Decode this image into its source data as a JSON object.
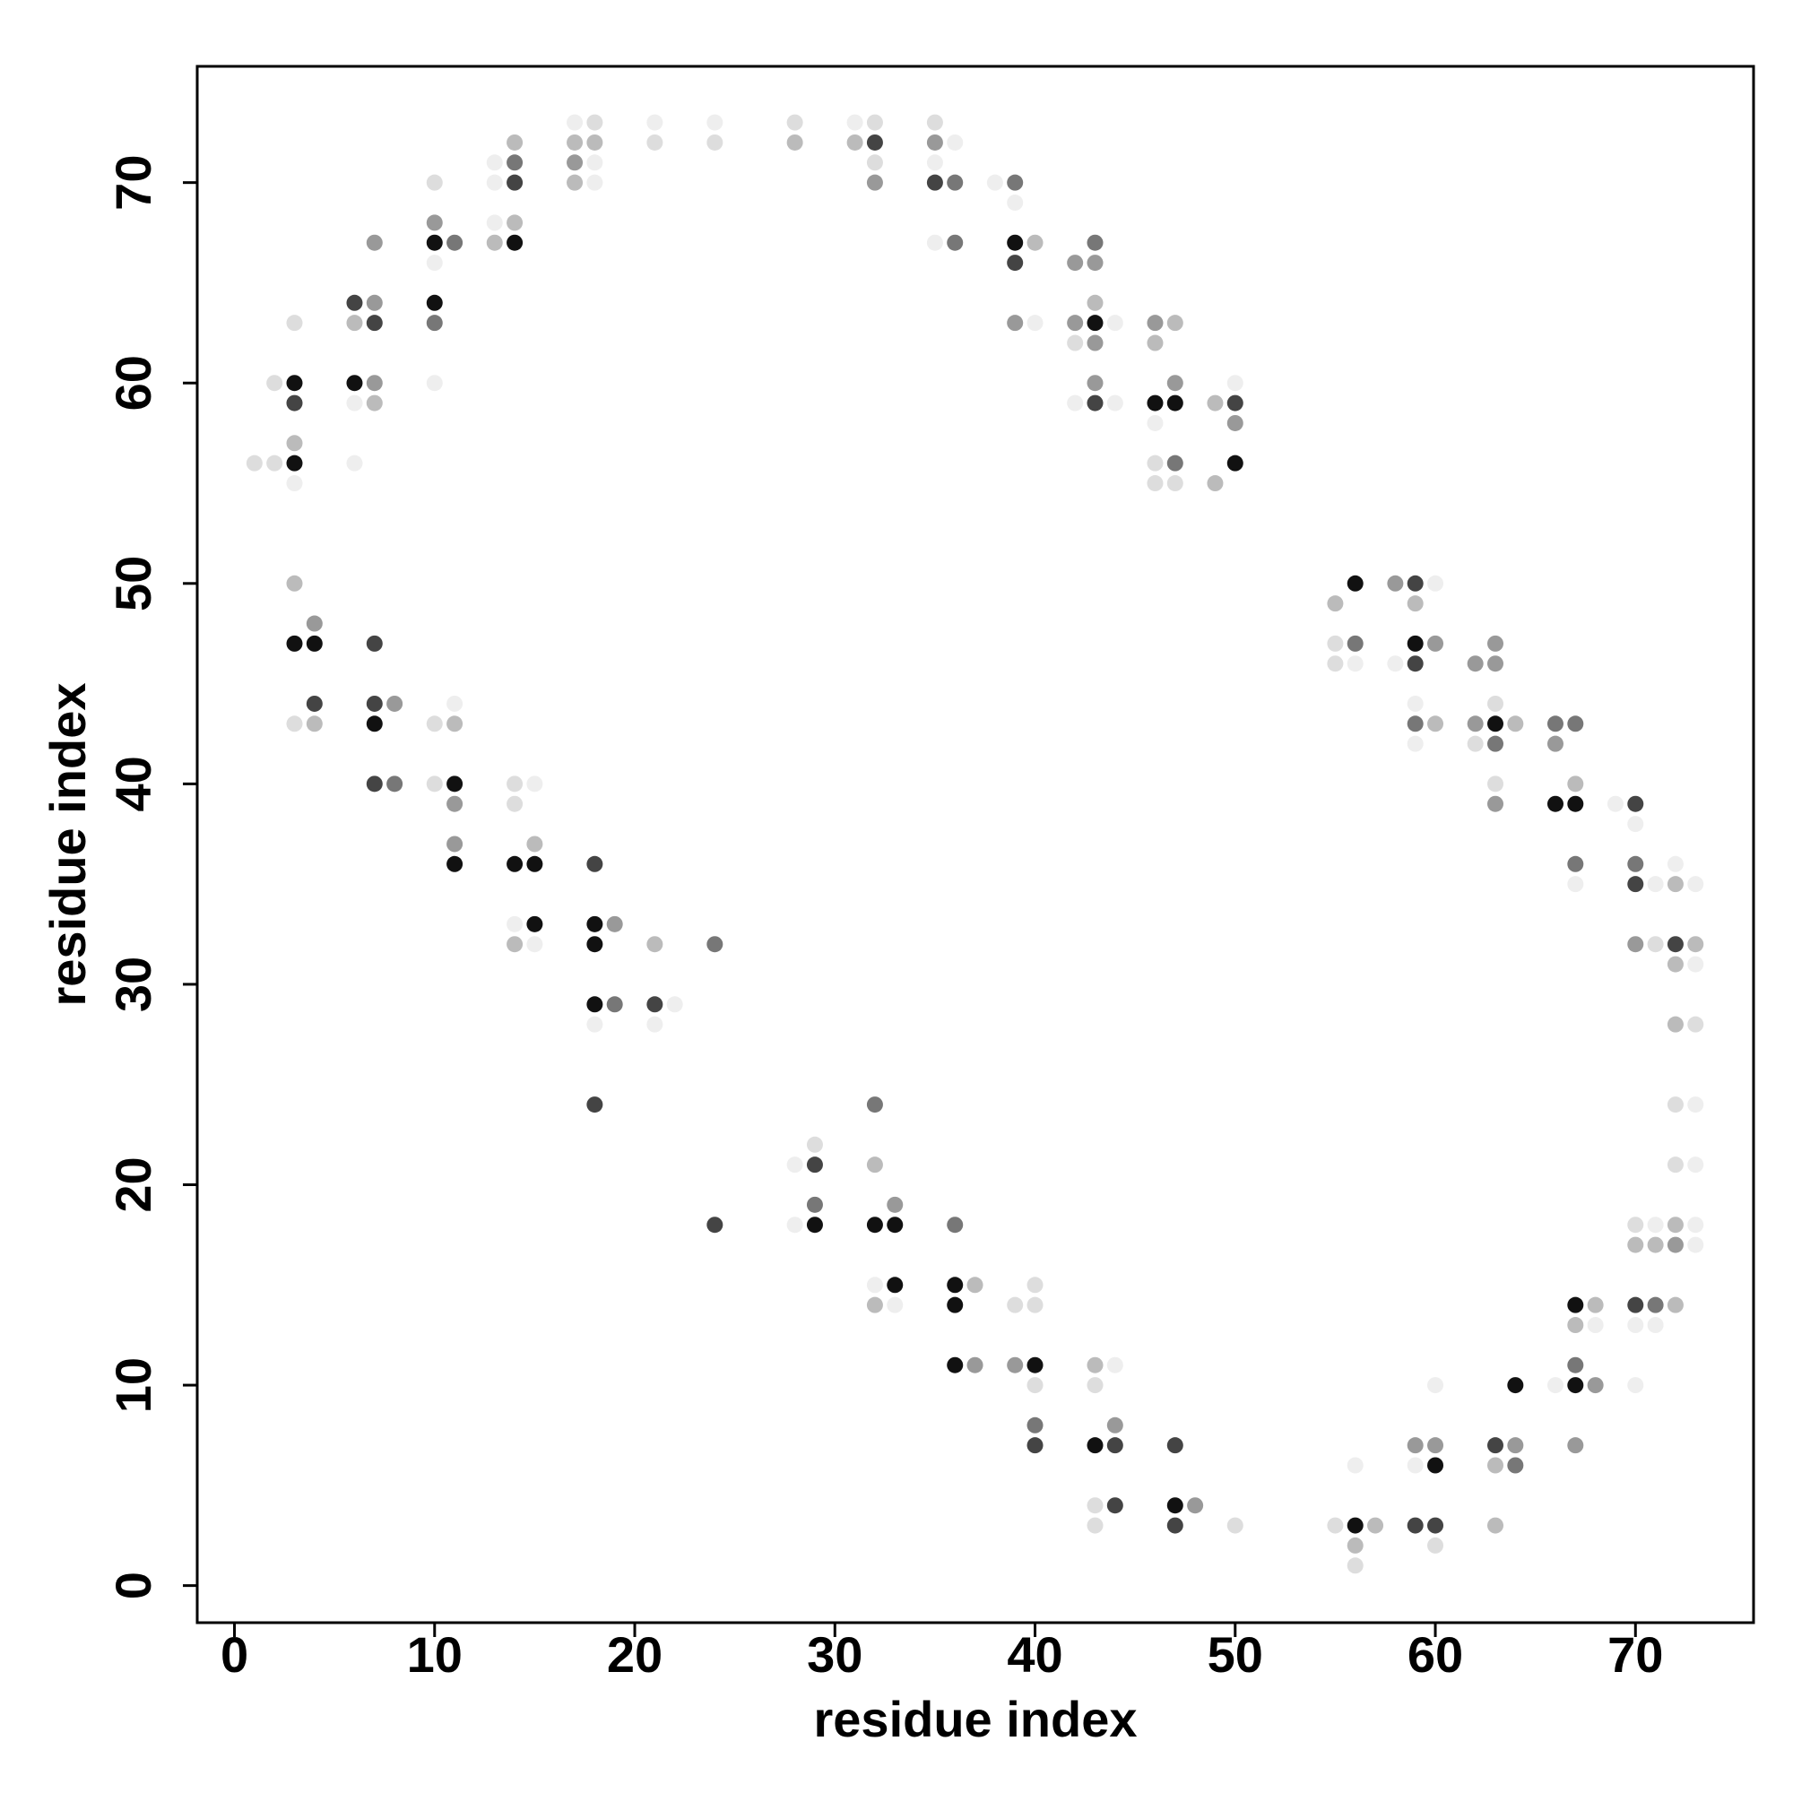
{
  "chart_data": {
    "type": "scatter",
    "xlabel": "residue index",
    "ylabel": "residue index",
    "xlim": [
      -1.86,
      75.9
    ],
    "ylim": [
      -1.85,
      75.8
    ],
    "xticks": [
      0,
      10,
      20,
      30,
      40,
      50,
      60,
      70
    ],
    "yticks": [
      0,
      10,
      20,
      30,
      40,
      50,
      60,
      70
    ],
    "x": [
      1,
      2,
      2,
      3,
      3,
      3,
      3,
      3,
      3,
      3,
      3,
      3,
      4,
      4,
      4,
      4,
      6,
      6,
      6,
      6,
      6,
      7,
      7,
      7,
      7,
      7,
      7,
      7,
      7,
      7,
      8,
      8,
      10,
      10,
      10,
      10,
      10,
      10,
      10,
      10,
      10,
      11,
      11,
      11,
      11,
      11,
      11,
      11,
      13,
      13,
      13,
      13,
      14,
      14,
      14,
      14,
      14,
      14,
      14,
      14,
      14,
      14,
      15,
      15,
      15,
      15,
      15,
      17,
      17,
      17,
      17,
      18,
      18,
      18,
      18,
      18,
      18,
      18,
      18,
      18,
      18,
      19,
      19,
      21,
      21,
      21,
      21,
      21,
      22,
      24,
      24,
      24,
      24,
      28,
      28,
      28,
      28,
      29,
      29,
      29,
      29,
      31,
      31,
      32,
      32,
      32,
      32,
      32,
      32,
      32,
      32,
      32,
      33,
      33,
      33,
      33,
      35,
      35,
      35,
      35,
      35,
      36,
      36,
      36,
      36,
      36,
      36,
      36,
      37,
      37,
      38,
      39,
      39,
      39,
      39,
      39,
      39,
      39,
      40,
      40,
      40,
      40,
      40,
      40,
      40,
      40,
      42,
      42,
      42,
      42,
      43,
      43,
      43,
      43,
      43,
      43,
      43,
      43,
      43,
      43,
      43,
      43,
      44,
      44,
      44,
      44,
      44,
      44,
      46,
      46,
      46,
      46,
      46,
      46,
      47,
      47,
      47,
      47,
      47,
      47,
      47,
      47,
      48,
      49,
      49,
      50,
      50,
      50,
      50,
      50,
      55,
      55,
      55,
      55,
      56,
      56,
      56,
      56,
      56,
      56,
      56,
      57,
      58,
      58,
      59,
      59,
      59,
      59,
      59,
      59,
      59,
      59,
      59,
      59,
      60,
      60,
      60,
      60,
      60,
      60,
      60,
      60,
      62,
      62,
      62,
      63,
      63,
      63,
      63,
      63,
      63,
      63,
      63,
      63,
      63,
      64,
      64,
      64,
      64,
      66,
      66,
      66,
      66,
      67,
      67,
      67,
      67,
      67,
      67,
      67,
      67,
      67,
      67,
      68,
      68,
      68,
      69,
      70,
      70,
      70,
      70,
      70,
      70,
      70,
      70,
      70,
      70,
      71,
      71,
      71,
      71,
      71,
      71,
      72,
      72,
      72,
      72,
      72,
      72,
      72,
      72,
      72,
      72,
      73,
      73,
      73,
      73,
      73,
      73,
      73,
      73
    ],
    "values": [
      56,
      60,
      56,
      63,
      60,
      59,
      57,
      56,
      55,
      50,
      47,
      43,
      48,
      47,
      44,
      43,
      64,
      63,
      60,
      59,
      56,
      67,
      64,
      63,
      60,
      59,
      47,
      44,
      43,
      40,
      44,
      40,
      70,
      68,
      67,
      66,
      64,
      63,
      60,
      43,
      40,
      67,
      44,
      43,
      40,
      39,
      37,
      36,
      71,
      70,
      68,
      67,
      72,
      71,
      70,
      68,
      67,
      40,
      39,
      36,
      33,
      32,
      40,
      37,
      36,
      33,
      32,
      73,
      72,
      71,
      70,
      73,
      72,
      71,
      70,
      36,
      33,
      32,
      29,
      28,
      24,
      33,
      29,
      73,
      72,
      32,
      29,
      28,
      29,
      73,
      72,
      32,
      18,
      73,
      72,
      21,
      18,
      22,
      21,
      19,
      18,
      73,
      72,
      73,
      72,
      71,
      70,
      24,
      21,
      18,
      15,
      14,
      19,
      18,
      15,
      14,
      73,
      72,
      71,
      70,
      67,
      72,
      70,
      67,
      18,
      15,
      14,
      11,
      15,
      11,
      70,
      70,
      69,
      67,
      66,
      63,
      14,
      11,
      67,
      63,
      15,
      14,
      11,
      10,
      8,
      7,
      66,
      63,
      62,
      59,
      67,
      66,
      64,
      63,
      62,
      60,
      59,
      11,
      10,
      7,
      4,
      3,
      63,
      59,
      11,
      8,
      7,
      4,
      63,
      62,
      59,
      58,
      56,
      55,
      63,
      60,
      59,
      56,
      55,
      7,
      4,
      3,
      4,
      59,
      55,
      60,
      59,
      58,
      56,
      3,
      49,
      47,
      46,
      3,
      50,
      47,
      46,
      6,
      3,
      2,
      1,
      3,
      50,
      46,
      50,
      49,
      47,
      46,
      44,
      43,
      42,
      7,
      6,
      3,
      50,
      47,
      43,
      10,
      7,
      6,
      3,
      2,
      46,
      43,
      42,
      47,
      46,
      44,
      43,
      42,
      40,
      39,
      7,
      6,
      3,
      43,
      10,
      7,
      6,
      43,
      42,
      39,
      10,
      43,
      40,
      39,
      36,
      35,
      14,
      13,
      11,
      10,
      7,
      14,
      13,
      10,
      39,
      39,
      38,
      36,
      35,
      32,
      18,
      17,
      14,
      13,
      10,
      35,
      32,
      18,
      17,
      14,
      13,
      36,
      35,
      32,
      31,
      28,
      24,
      21,
      18,
      17,
      14,
      35,
      32,
      31,
      28,
      24,
      21,
      18,
      17
    ],
    "colors": [
      "#ddd",
      "#ddd",
      "#ddd",
      "#ddd",
      "#111",
      "#444",
      "#bbb",
      "#111",
      "#eee",
      "#bbb",
      "#111",
      "#ddd",
      "#999",
      "#111",
      "#444",
      "#bbb",
      "#444",
      "#bbb",
      "#111",
      "#eee",
      "#eee",
      "#999",
      "#999",
      "#444",
      "#999",
      "#bbb",
      "#444",
      "#444",
      "#111",
      "#444",
      "#999",
      "#777",
      "#ddd",
      "#999",
      "#111",
      "#eee",
      "#111",
      "#777",
      "#eee",
      "#ddd",
      "#ddd",
      "#777",
      "#eee",
      "#bbb",
      "#111",
      "#999",
      "#999",
      "#111",
      "#eee",
      "#eee",
      "#eee",
      "#bbb",
      "#bbb",
      "#777",
      "#444",
      "#bbb",
      "#111",
      "#ddd",
      "#ddd",
      "#111",
      "#eee",
      "#bbb",
      "#eee",
      "#bbb",
      "#111",
      "#111",
      "#eee",
      "#eee",
      "#bbb",
      "#999",
      "#bbb",
      "#ddd",
      "#bbb",
      "#eee",
      "#eee",
      "#444",
      "#111",
      "#111",
      "#111",
      "#eee",
      "#444",
      "#999",
      "#777",
      "#eee",
      "#ddd",
      "#bbb",
      "#444",
      "#eee",
      "#eee",
      "#eee",
      "#ddd",
      "#777",
      "#444",
      "#ddd",
      "#bbb",
      "#eee",
      "#eee",
      "#ddd",
      "#444",
      "#777",
      "#111",
      "#eee",
      "#bbb",
      "#ddd",
      "#444",
      "#ddd",
      "#999",
      "#777",
      "#bbb",
      "#111",
      "#eee",
      "#bbb",
      "#999",
      "#111",
      "#111",
      "#eee",
      "#ddd",
      "#999",
      "#eee",
      "#444",
      "#eee",
      "#eee",
      "#777",
      "#777",
      "#777",
      "#111",
      "#111",
      "#111",
      "#bbb",
      "#999",
      "#eee",
      "#777",
      "#eee",
      "#111",
      "#444",
      "#999",
      "#ddd",
      "#999",
      "#bbb",
      "#eee",
      "#ddd",
      "#ddd",
      "#111",
      "#ddd",
      "#777",
      "#444",
      "#999",
      "#999",
      "#ddd",
      "#eee",
      "#777",
      "#999",
      "#bbb",
      "#111",
      "#999",
      "#999",
      "#444",
      "#bbb",
      "#ddd",
      "#111",
      "#ddd",
      "#ddd",
      "#eee",
      "#eee",
      "#eee",
      "#999",
      "#444",
      "#444",
      "#999",
      "#bbb",
      "#111",
      "#eee",
      "#ddd",
      "#ddd",
      "#bbb",
      "#999",
      "#111",
      "#777",
      "#ddd",
      "#444",
      "#111",
      "#444",
      "#999",
      "#bbb",
      "#bbb",
      "#eee",
      "#444",
      "#999",
      "#111",
      "#ddd",
      "#bbb",
      "#ddd",
      "#ddd",
      "#ddd",
      "#111",
      "#777",
      "#eee",
      "#eee",
      "#111",
      "#bbb",
      "#ddd",
      "#bbb",
      "#999",
      "#eee",
      "#444",
      "#bbb",
      "#111",
      "#444",
      "#eee",
      "#777",
      "#eee",
      "#999",
      "#eee",
      "#444",
      "#eee",
      "#999",
      "#bbb",
      "#eee",
      "#999",
      "#111",
      "#444",
      "#ddd",
      "#999",
      "#999",
      "#ddd",
      "#999",
      "#999",
      "#ddd",
      "#111",
      "#777",
      "#ddd",
      "#999",
      "#444",
      "#bbb",
      "#bbb",
      "#bbb",
      "#111",
      "#999",
      "#777",
      "#777",
      "#999",
      "#111",
      "#eee",
      "#777",
      "#bbb",
      "#111",
      "#777",
      "#eee",
      "#111",
      "#bbb",
      "#777",
      "#111",
      "#999",
      "#bbb",
      "#eee",
      "#999",
      "#eee",
      "#444",
      "#eee",
      "#777",
      "#444",
      "#999",
      "#ddd",
      "#bbb",
      "#444",
      "#eee",
      "#eee",
      "#eee",
      "#ddd",
      "#eee",
      "#bbb",
      "#777",
      "#eee",
      "#eee",
      "#bbb",
      "#444",
      "#bbb",
      "#bbb",
      "#ddd",
      "#ddd",
      "#bbb",
      "#999",
      "#bbb",
      "#eee",
      "#bbb",
      "#eee",
      "#ddd",
      "#eee",
      "#eee",
      "#eee",
      "#eee"
    ]
  }
}
